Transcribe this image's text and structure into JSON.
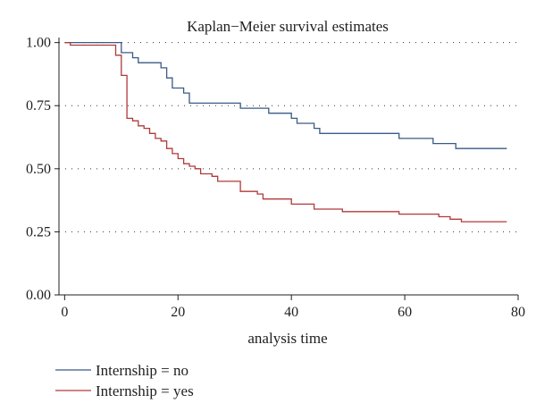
{
  "chart_data": {
    "type": "line",
    "step": true,
    "title": "Kaplan−Meier survival estimates",
    "xlabel": "analysis time",
    "ylabel": "",
    "xlim": [
      -1,
      80
    ],
    "ylim": [
      0,
      1.02
    ],
    "x_ticks": [
      0,
      20,
      40,
      60,
      80
    ],
    "y_ticks": [
      0.0,
      0.25,
      0.5,
      0.75,
      1.0
    ],
    "x_tick_labels": [
      "0",
      "20",
      "40",
      "60",
      "80"
    ],
    "y_tick_labels": [
      "0.00",
      "0.25",
      "0.50",
      "0.75",
      "1.00"
    ],
    "grid": "horizontal-dotted",
    "legend_position": "bottom-left",
    "series": [
      {
        "name": "Internship = no",
        "color": "#3a5a86",
        "x": [
          0,
          10,
          11,
          12,
          13,
          17,
          18,
          19,
          21,
          22,
          31,
          36,
          40,
          41,
          44,
          45,
          59,
          65,
          69,
          78
        ],
        "y": [
          1.0,
          0.96,
          0.96,
          0.94,
          0.92,
          0.9,
          0.86,
          0.82,
          0.8,
          0.76,
          0.74,
          0.72,
          0.7,
          0.68,
          0.66,
          0.64,
          0.62,
          0.6,
          0.58,
          0.58
        ]
      },
      {
        "name": "Internship = yes",
        "color": "#b03a3a",
        "x": [
          0,
          1,
          9,
          10,
          11,
          12,
          13,
          14,
          15,
          16,
          17,
          18,
          19,
          20,
          21,
          22,
          23,
          24,
          26,
          27,
          31,
          34,
          35,
          40,
          44,
          49,
          59,
          66,
          68,
          70,
          78
        ],
        "y": [
          1.0,
          0.99,
          0.95,
          0.87,
          0.7,
          0.69,
          0.67,
          0.66,
          0.64,
          0.62,
          0.61,
          0.58,
          0.56,
          0.54,
          0.52,
          0.51,
          0.5,
          0.48,
          0.47,
          0.45,
          0.41,
          0.4,
          0.38,
          0.36,
          0.34,
          0.33,
          0.32,
          0.31,
          0.3,
          0.29,
          0.29
        ]
      }
    ]
  }
}
